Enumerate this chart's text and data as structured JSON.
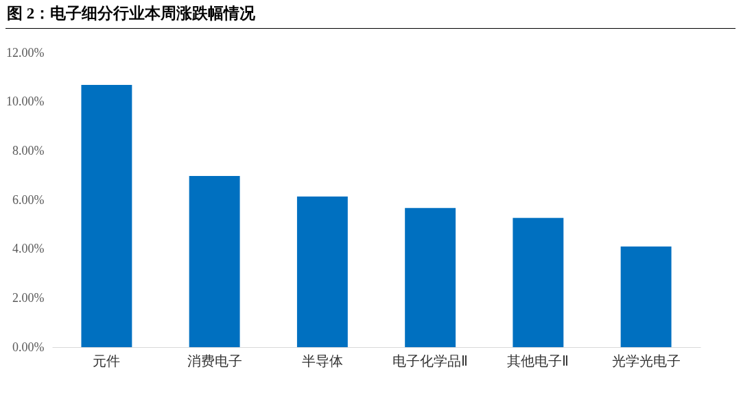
{
  "chart_data": {
    "type": "bar",
    "title": "图 2：电子细分行业本周涨跌幅情况",
    "categories": [
      "元件",
      "消费电子",
      "半导体",
      "电子化学品Ⅱ",
      "其他电子Ⅱ",
      "光学光电子"
    ],
    "values": [
      10.69,
      6.98,
      6.14,
      5.67,
      5.27,
      4.1
    ],
    "color": "#0070c0",
    "ylim": [
      0,
      12
    ],
    "yticks": [
      {
        "value": 0,
        "label": "0.00%"
      },
      {
        "value": 2,
        "label": "2.00%"
      },
      {
        "value": 4,
        "label": "4.00%"
      },
      {
        "value": 6,
        "label": "6.00%"
      },
      {
        "value": 8,
        "label": "8.00%"
      },
      {
        "value": 10,
        "label": "10.00%"
      },
      {
        "value": 12,
        "label": "12.00%"
      }
    ],
    "grid": false
  }
}
